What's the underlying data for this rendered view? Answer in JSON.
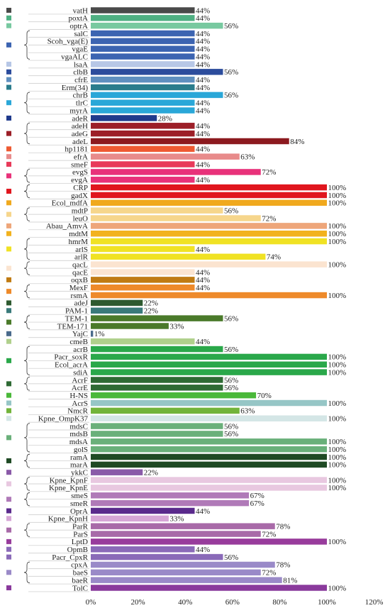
{
  "chart_data": {
    "type": "bar",
    "orientation": "horizontal",
    "xlim": [
      0,
      120
    ],
    "x_ticks": [
      "0%",
      "20%",
      "40%",
      "60%",
      "80%",
      "100%",
      "120%"
    ],
    "x_tick_values": [
      0,
      20,
      40,
      60,
      80,
      100,
      120
    ],
    "grid": false,
    "title": "",
    "xlabel": "",
    "ylabel": "",
    "groups": [
      {
        "color": "#4a4a4a",
        "bars": [
          {
            "gene": "vatH",
            "value": 44,
            "label": "44%",
            "color": "#4a4a4a"
          }
        ]
      },
      {
        "color": "#4fb083",
        "bars": [
          {
            "gene": "poxtA",
            "value": 44,
            "label": "44%",
            "color": "#4fb083"
          }
        ]
      },
      {
        "color": "#78c9a0",
        "bars": [
          {
            "gene": "optrA",
            "value": 56,
            "label": "56%",
            "color": "#78c9a0"
          }
        ]
      },
      {
        "color": "#3c64b1",
        "bars": [
          {
            "gene": "salC",
            "value": 44,
            "label": "44%",
            "color": "#3c64b1"
          },
          {
            "gene": "Scoh_vga(E)",
            "value": 44,
            "label": "44%",
            "color": "#3c64b1"
          },
          {
            "gene": "vgaE",
            "value": 44,
            "label": "44%",
            "color": "#3c64b1"
          },
          {
            "gene": "vgaALC",
            "value": 44,
            "label": "44%",
            "color": "#3c64b1"
          }
        ]
      },
      {
        "color": "#b7c7e6",
        "bars": [
          {
            "gene": "lsaA",
            "value": 44,
            "label": "44%",
            "color": "#b7c7e6"
          }
        ]
      },
      {
        "color": "#2c4c9c",
        "bars": [
          {
            "gene": "clbB",
            "value": 56,
            "label": "56%",
            "color": "#2c4c9c"
          }
        ]
      },
      {
        "color": "#5f8fbf",
        "bars": [
          {
            "gene": "cfrE",
            "value": 44,
            "label": "44%",
            "color": "#5f8fbf"
          }
        ]
      },
      {
        "color": "#2a7c8c",
        "bars": [
          {
            "gene": "Erm(34)",
            "value": 44,
            "label": "44%",
            "color": "#2a7c8c"
          }
        ]
      },
      {
        "color": "#2aa7d8",
        "bars": [
          {
            "gene": "chrB",
            "value": 56,
            "label": "56%",
            "color": "#2aa7d8"
          },
          {
            "gene": "tlrC",
            "value": 44,
            "label": "44%",
            "color": "#2aa7d8"
          },
          {
            "gene": "myrA",
            "value": 44,
            "label": "44%",
            "color": "#2aa7d8"
          }
        ]
      },
      {
        "color": "#1f3a8c",
        "bars": [
          {
            "gene": "adeR",
            "value": 28,
            "label": "28%",
            "color": "#1f3a8c"
          }
        ]
      },
      {
        "color": "#9c1f28",
        "bars": [
          {
            "gene": "adeH",
            "value": 44,
            "label": "44%",
            "color": "#9c1f28"
          },
          {
            "gene": "adeG",
            "value": 44,
            "label": "44%",
            "color": "#9c1f28"
          },
          {
            "gene": "adeL",
            "value": 84,
            "label": "84%",
            "color": "#8c1a1f"
          }
        ]
      },
      {
        "color": "#ee5a32",
        "bars": [
          {
            "gene": "hp1181",
            "value": 44,
            "label": "44%",
            "color": "#ee5a32"
          }
        ]
      },
      {
        "color": "#e88b8b",
        "bars": [
          {
            "gene": "efrA",
            "value": 63,
            "label": "63%",
            "color": "#e88b8b"
          }
        ]
      },
      {
        "color": "#e83a5a",
        "bars": [
          {
            "gene": "smeF",
            "value": 44,
            "label": "44%",
            "color": "#e83a5a"
          }
        ]
      },
      {
        "color": "#e8327a",
        "bars": [
          {
            "gene": "evgS",
            "value": 72,
            "label": "72%",
            "color": "#e8327a"
          },
          {
            "gene": "evgA",
            "value": 44,
            "label": "44%",
            "color": "#e8327a"
          }
        ]
      },
      {
        "color": "#e0161e",
        "bars": [
          {
            "gene": "CRP",
            "value": 100,
            "label": "100%",
            "color": "#e0161e"
          },
          {
            "gene": "gadX",
            "value": 100,
            "label": "100%",
            "color": "#e0161e"
          }
        ]
      },
      {
        "color": "#f0a91e",
        "bars": [
          {
            "gene": "Ecol_mdfA",
            "value": 100,
            "label": "100%",
            "color": "#f0a91e"
          }
        ]
      },
      {
        "color": "#f6d68c",
        "bars": [
          {
            "gene": "mdtP",
            "value": 56,
            "label": "56%",
            "color": "#f6d68c"
          },
          {
            "gene": "leuO",
            "value": 72,
            "label": "72%",
            "color": "#f6d68c"
          }
        ]
      },
      {
        "color": "#eea67a",
        "bars": [
          {
            "gene": "Abau_AmvA",
            "value": 100,
            "label": "100%",
            "color": "#eea67a"
          }
        ]
      },
      {
        "color": "#f2b21e",
        "bars": [
          {
            "gene": "mdtM",
            "value": 100,
            "label": "100%",
            "color": "#f2b21e"
          }
        ]
      },
      {
        "color": "#f0e224",
        "bars": [
          {
            "gene": "hmrM",
            "value": 100,
            "label": "100%",
            "color": "#f0e224"
          },
          {
            "gene": "arlS",
            "value": 44,
            "label": "44%",
            "color": "#f0e224"
          },
          {
            "gene": "arlR",
            "value": 74,
            "label": "74%",
            "color": "#f0e224"
          }
        ]
      },
      {
        "color": "#fbe4d0",
        "bars": [
          {
            "gene": "qacL",
            "value": 100,
            "label": "100%",
            "color": "#fbe4d0"
          },
          {
            "gene": "qacE",
            "value": 44,
            "label": "44%",
            "color": "#fbe4d0"
          }
        ]
      },
      {
        "color": "#c07b12",
        "bars": [
          {
            "gene": "oqxB",
            "value": 44,
            "label": "44%",
            "color": "#c07b12"
          }
        ]
      },
      {
        "color": "#ee8a2a",
        "bars": [
          {
            "gene": "MexF",
            "value": 44,
            "label": "44%",
            "color": "#ee8a2a"
          },
          {
            "gene": "rsmA",
            "value": 100,
            "label": "100%",
            "color": "#ee8a2a"
          }
        ]
      },
      {
        "color": "#2e5a30",
        "bars": [
          {
            "gene": "adeJ",
            "value": 22,
            "label": "22%",
            "color": "#2e5a30"
          }
        ]
      },
      {
        "color": "#3a7a7a",
        "bars": [
          {
            "gene": "PAM-1",
            "value": 22,
            "label": "22%",
            "color": "#3a7a7a"
          }
        ]
      },
      {
        "color": "#4a7a2a",
        "bars": [
          {
            "gene": "TEM-1",
            "value": 56,
            "label": "56%",
            "color": "#4a7a2a"
          },
          {
            "gene": "TEM-171",
            "value": 33,
            "label": "33%",
            "color": "#4a7a2a"
          }
        ]
      },
      {
        "color": "#4a6a8c",
        "bars": [
          {
            "gene": "YajC",
            "value": 1,
            "label": "1%",
            "color": "#4a6a8c"
          }
        ]
      },
      {
        "color": "#b0d08c",
        "bars": [
          {
            "gene": "cmeB",
            "value": 44,
            "label": "44%",
            "color": "#b0d08c"
          }
        ]
      },
      {
        "color": "#2aa84a",
        "bars": [
          {
            "gene": "acrB",
            "value": 56,
            "label": "56%",
            "color": "#2aa84a"
          },
          {
            "gene": "Pacr_soxR",
            "value": 100,
            "label": "100%",
            "color": "#2aa84a"
          },
          {
            "gene": "Ecol_acrA",
            "value": 100,
            "label": "100%",
            "color": "#2aa84a"
          },
          {
            "gene": "sdiA",
            "value": 100,
            "label": "100%",
            "color": "#2aa84a"
          }
        ]
      },
      {
        "color": "#2e6a34",
        "bars": [
          {
            "gene": "AcrF",
            "value": 56,
            "label": "56%",
            "color": "#2e6a34"
          },
          {
            "gene": "AcrE",
            "value": 56,
            "label": "56%",
            "color": "#2e6a34"
          }
        ]
      },
      {
        "color": "#4ab83a",
        "bars": [
          {
            "gene": "H-NS",
            "value": 70,
            "label": "70%",
            "color": "#4ab83a"
          }
        ]
      },
      {
        "color": "#96c6c6",
        "bars": [
          {
            "gene": "AcrS",
            "value": 100,
            "label": "100%",
            "color": "#96c6c6"
          }
        ]
      },
      {
        "color": "#72b43a",
        "bars": [
          {
            "gene": "NmcR",
            "value": 63,
            "label": "63%",
            "color": "#72b43a"
          }
        ]
      },
      {
        "color": "#d4e6e6",
        "bars": [
          {
            "gene": "Kpne_OmpK37",
            "value": 100,
            "label": "100%",
            "color": "#d4e6e6"
          }
        ]
      },
      {
        "color": "#6ab07a",
        "bars": [
          {
            "gene": "mdsC",
            "value": 56,
            "label": "56%",
            "color": "#6ab07a"
          },
          {
            "gene": "mdsB",
            "value": 56,
            "label": "56%",
            "color": "#6ab07a"
          },
          {
            "gene": "mdsA",
            "value": 100,
            "label": "100%",
            "color": "#6ab07a"
          },
          {
            "gene": "golS",
            "value": 100,
            "label": "100%",
            "color": "#6ab07a"
          }
        ]
      },
      {
        "color": "#1f4a24",
        "bars": [
          {
            "gene": "ramA",
            "value": 100,
            "label": "100%",
            "color": "#1f4a24"
          },
          {
            "gene": "marA",
            "value": 100,
            "label": "100%",
            "color": "#1f4a24"
          }
        ]
      },
      {
        "color": "#8a5aa8",
        "bars": [
          {
            "gene": "ykkC",
            "value": 22,
            "label": "22%",
            "color": "#8a5aa8"
          }
        ]
      },
      {
        "color": "#e8c8e0",
        "bars": [
          {
            "gene": "Kpne_KpnF",
            "value": 100,
            "label": "100%",
            "color": "#e8c8e0"
          },
          {
            "gene": "Kpne_KpnE",
            "value": 100,
            "label": "100%",
            "color": "#e8c8e0"
          }
        ]
      },
      {
        "color": "#b07ab8",
        "bars": [
          {
            "gene": "smeS",
            "value": 67,
            "label": "67%",
            "color": "#b07ab8"
          },
          {
            "gene": "smeR",
            "value": 67,
            "label": "67%",
            "color": "#b07ab8"
          }
        ]
      },
      {
        "color": "#5a2a8c",
        "bars": [
          {
            "gene": "OprA",
            "value": 44,
            "label": "44%",
            "color": "#5a2a8c"
          }
        ]
      },
      {
        "color": "#d6a6d6",
        "bars": [
          {
            "gene": "Kpne_KpnH",
            "value": 33,
            "label": "33%",
            "color": "#d6a6d6"
          }
        ]
      },
      {
        "color": "#a86aa8",
        "bars": [
          {
            "gene": "ParR",
            "value": 78,
            "label": "78%",
            "color": "#a86aa8"
          },
          {
            "gene": "ParS",
            "value": 72,
            "label": "72%",
            "color": "#a86aa8"
          }
        ]
      },
      {
        "color": "#983c9c",
        "bars": [
          {
            "gene": "LptD",
            "value": 100,
            "label": "100%",
            "color": "#983c9c"
          }
        ]
      },
      {
        "color": "#8a6ab8",
        "bars": [
          {
            "gene": "OpmB",
            "value": 44,
            "label": "44%",
            "color": "#8a6ab8"
          }
        ]
      },
      {
        "color": "#8a6ab8",
        "bars": [
          {
            "gene": "Pacr_CpxR",
            "value": 56,
            "label": "56%",
            "color": "#8a6ab8"
          }
        ]
      },
      {
        "color": "#9a8ac8",
        "bars": [
          {
            "gene": "cpxA",
            "value": 78,
            "label": "78%",
            "color": "#9a8ac8"
          },
          {
            "gene": "baeS",
            "value": 72,
            "label": "72%",
            "color": "#9a8ac8"
          },
          {
            "gene": "baeR",
            "value": 81,
            "label": "81%",
            "color": "#9a8ac8"
          }
        ]
      },
      {
        "color": "#8a3a9c",
        "bars": [
          {
            "gene": "TolC",
            "value": 100,
            "label": "100%",
            "color": "#8a3a9c"
          }
        ]
      }
    ]
  }
}
